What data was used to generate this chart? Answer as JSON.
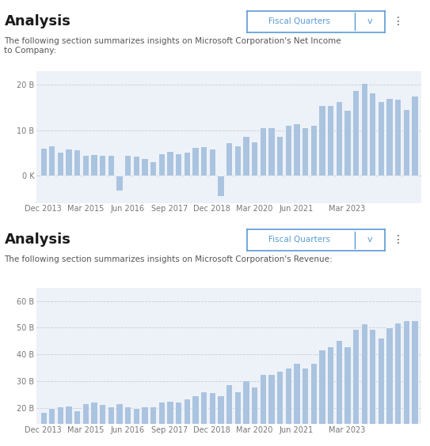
{
  "net_income": [
    6.1,
    6.6,
    5.2,
    5.9,
    5.7,
    4.6,
    4.8,
    4.5,
    4.6,
    -3.2,
    4.6,
    4.4,
    3.8,
    3.1,
    5.0,
    5.5,
    5.0,
    5.2,
    6.3,
    6.5,
    6.0,
    -4.5,
    7.4,
    6.6,
    8.8,
    7.5,
    10.7,
    10.7,
    8.8,
    11.2,
    11.6,
    10.6,
    11.2,
    15.5,
    15.5,
    16.5,
    14.5,
    18.8,
    20.5,
    18.3,
    16.5,
    17.2,
    16.9,
    14.7,
    17.6
  ],
  "revenue": [
    18.5,
    19.9,
    20.5,
    20.7,
    19.0,
    21.7,
    22.2,
    21.3,
    20.4,
    21.7,
    20.5,
    20.0,
    20.4,
    20.5,
    22.1,
    22.6,
    22.1,
    23.3,
    24.7,
    26.1,
    25.7,
    24.5,
    28.9,
    26.1,
    30.1,
    28.0,
    32.5,
    32.5,
    33.7,
    35.0,
    36.9,
    35.0,
    36.9,
    41.7,
    43.1,
    45.3,
    43.1,
    49.4,
    51.7,
    49.4,
    46.2,
    50.1,
    51.9,
    52.7,
    52.7
  ],
  "x_labels": [
    "Dec 2013",
    "Mar 2015",
    "Jun 2016",
    "Sep 2017",
    "Dec 2018",
    "Mar 2020",
    "Jun 2021",
    "Mar 2023"
  ],
  "x_tick_positions": [
    0,
    5,
    10,
    15,
    20,
    25,
    30,
    36
  ],
  "bar_color": "#aac4e0",
  "bg_color": "#edf1f8",
  "title": "Analysis",
  "subtitle1": "The following section summarizes insights on Microsoft Corporation's Net Income\nto Company:",
  "subtitle2": "The following section summarizes insights on Microsoft Corporation's Revenue:",
  "button_label": "Fiscal Quarters",
  "net_income_yticks": [
    0,
    10,
    20
  ],
  "net_income_ylabels": [
    "0 K",
    "10 B",
    "20 B"
  ],
  "net_income_ylim": [
    -6,
    23
  ],
  "revenue_yticks": [
    20,
    30,
    40,
    50,
    60
  ],
  "revenue_ylabels": [
    "20 B",
    "30 B",
    "40 B",
    "50 B",
    "60 B"
  ],
  "revenue_ylim": [
    14,
    65
  ],
  "title_color": "#1a1a1a",
  "subtitle_color": "#555555",
  "tick_color": "#777777",
  "grid_color": "#cccccc",
  "button_border_color": "#5b9bd5",
  "button_text_color": "#5b9bd5"
}
